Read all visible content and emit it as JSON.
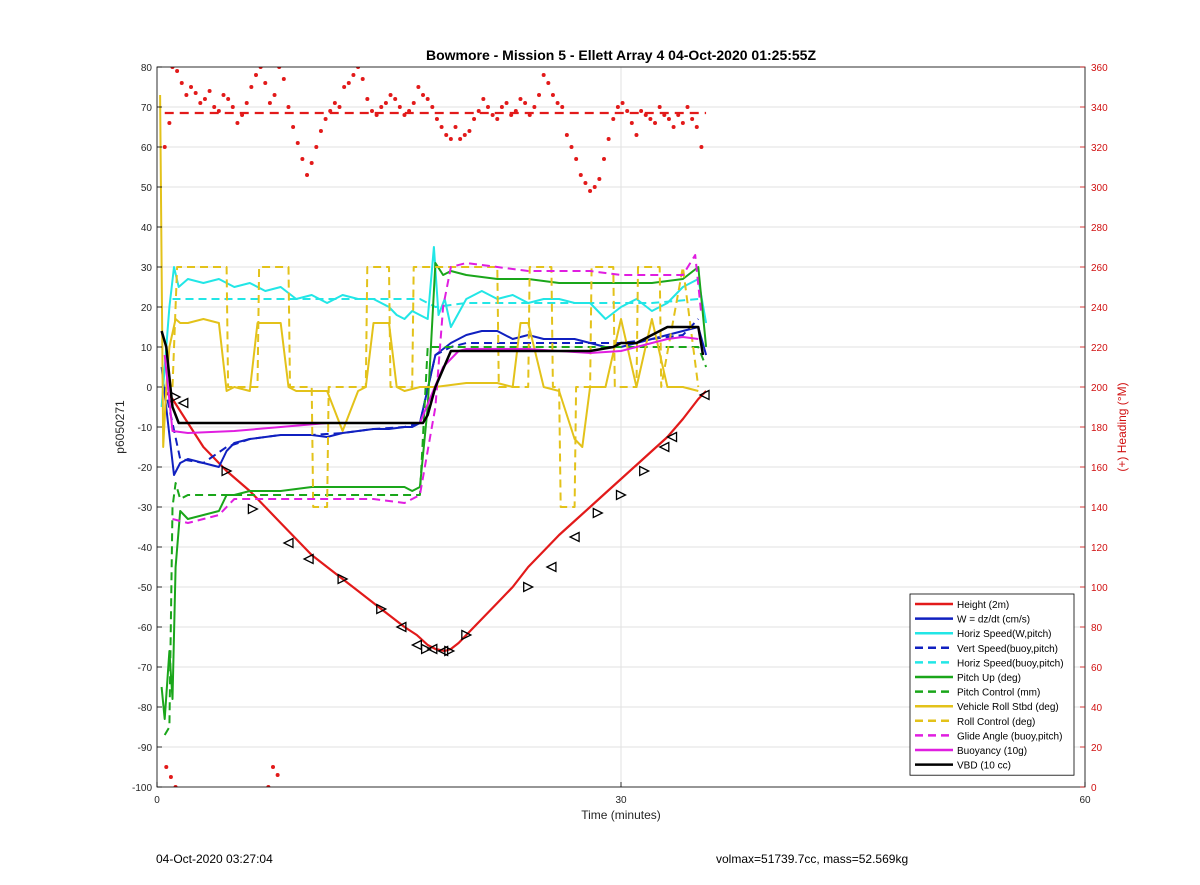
{
  "chart_data": {
    "type": "line",
    "title": "Bowmore - Mission 5 - Ellett Array 4 04-Oct-2020 01:25:55Z",
    "xlabel": "Time (minutes)",
    "ylabel": "p6050271",
    "y2label": "(+) Heading (°M)",
    "xlim": [
      0,
      60
    ],
    "ylim": [
      -100,
      80
    ],
    "y2lim": [
      0,
      360
    ],
    "xticks": [
      0,
      30,
      60
    ],
    "yticks": [
      80,
      70,
      60,
      50,
      40,
      30,
      20,
      10,
      0,
      -10,
      -20,
      -30,
      -40,
      -50,
      -60,
      -70,
      -80,
      -90,
      -100
    ],
    "y2ticks": [
      360,
      340,
      320,
      300,
      280,
      260,
      240,
      220,
      200,
      180,
      160,
      140,
      120,
      100,
      80,
      60,
      40,
      20,
      0
    ],
    "grid": true,
    "legend_position": "lower-right",
    "legend": [
      {
        "label": "Height (2m)",
        "color": "#e21a1a",
        "style": "solid"
      },
      {
        "label": "W = dz/dt (cm/s)",
        "color": "#1020c0",
        "style": "solid"
      },
      {
        "label": "Horiz Speed(W,pitch)",
        "color": "#22e6e6",
        "style": "solid"
      },
      {
        "label": "Vert Speed(buoy,pitch)",
        "color": "#1020c0",
        "style": "dashed"
      },
      {
        "label": "Horiz Speed(buoy,pitch)",
        "color": "#22e6e6",
        "style": "dashed"
      },
      {
        "label": "Pitch Up (deg)",
        "color": "#1aa61a",
        "style": "solid"
      },
      {
        "label": "Pitch Control (mm)",
        "color": "#1aa61a",
        "style": "dashed"
      },
      {
        "label": "Vehicle Roll Stbd (deg)",
        "color": "#e3c21a",
        "style": "solid"
      },
      {
        "label": "Roll Control (deg)",
        "color": "#e3c21a",
        "style": "dashed"
      },
      {
        "label": "Glide Angle (buoy,pitch)",
        "color": "#e01ee0",
        "style": "dashed"
      },
      {
        "label": "Buoyancy (10g)",
        "color": "#e01ee0",
        "style": "solid"
      },
      {
        "label": "VBD (10 cc)",
        "color": "#000000",
        "style": "solid"
      }
    ],
    "series": [
      {
        "name": "Height (2m)",
        "color": "#e21a1a",
        "style": "solid",
        "width": 2.2,
        "x": [
          0.5,
          1.0,
          2.0,
          3.0,
          4.5,
          6.0,
          7.0,
          8.0,
          9.0,
          10.0,
          11.0,
          12.0,
          13.0,
          14.0,
          15.0,
          16.0,
          16.8,
          17.5,
          18.0,
          18.6,
          19.0,
          19.5,
          20.0,
          21.0,
          22.0,
          23.0,
          24.0,
          25.0,
          26.0,
          27.0,
          28.0,
          29.0,
          30.0,
          31.0,
          32.0,
          33.0,
          34.0,
          35.0,
          35.5
        ],
        "y": [
          -1,
          -3,
          -9,
          -15,
          -21,
          -26,
          -30,
          -34,
          -38,
          -42,
          -45,
          -48,
          -51,
          -54,
          -57,
          -60,
          -62,
          -64.5,
          -65.5,
          -66,
          -65.5,
          -64,
          -62,
          -58,
          -54,
          -50,
          -45,
          -41,
          -37,
          -33.5,
          -30,
          -26.5,
          -23,
          -19.5,
          -16,
          -12.5,
          -8,
          -3,
          -1
        ]
      },
      {
        "name": "W = dz/dt (cm/s)",
        "color": "#1020c0",
        "style": "solid",
        "width": 2,
        "x": [
          0.3,
          0.8,
          1.1,
          1.5,
          2.0,
          3.0,
          4.0,
          4.5,
          5.0,
          6.0,
          7.0,
          8.0,
          9.0,
          10.0,
          11.0,
          12.0,
          13.0,
          14.0,
          15.0,
          16.0,
          16.5,
          17.0,
          18.0,
          19.0,
          20.0,
          21.0,
          22.0,
          23.0,
          24.0,
          25.0,
          26.0,
          27.0,
          28.0,
          29.0,
          30.0,
          31.0,
          32.0,
          33.0,
          34.0,
          35.0,
          35.5
        ],
        "y": [
          5,
          -12,
          -22,
          -19,
          -18,
          -19,
          -20,
          -16,
          -14,
          -13,
          -12.5,
          -12,
          -12,
          -12,
          -12.5,
          -11.5,
          -11,
          -10.5,
          -10.5,
          -10,
          -10,
          -9,
          8,
          11,
          13,
          14,
          14,
          12,
          13,
          12,
          12,
          12,
          11,
          10,
          10,
          11,
          12,
          13,
          14,
          15,
          8
        ]
      },
      {
        "name": "Horiz Speed(W,pitch)",
        "color": "#22e6e6",
        "style": "solid",
        "width": 2,
        "x": [
          0.3,
          0.8,
          1.1,
          1.4,
          2.0,
          3.0,
          4.0,
          5.0,
          6.0,
          7.0,
          8.0,
          9.0,
          10.0,
          11.0,
          12.0,
          13.0,
          14.0,
          15.0,
          15.5,
          16.0,
          16.5,
          17.0,
          17.5,
          17.9,
          18.2,
          18.6,
          19.0,
          20.0,
          21.0,
          22.0,
          23.0,
          24.0,
          25.0,
          26.0,
          27.0,
          28.0,
          29.0,
          30.0,
          31.0,
          32.0,
          33.0,
          34.0,
          35.0,
          35.5
        ],
        "y": [
          -5,
          20,
          30,
          25,
          27,
          26,
          27,
          25,
          26,
          24,
          25,
          22,
          23,
          21,
          23,
          22,
          22,
          20,
          18,
          17,
          19,
          18,
          17,
          35,
          18,
          22,
          15,
          22,
          24,
          22,
          23,
          21,
          22,
          22,
          21,
          21,
          17,
          20,
          22,
          19,
          21,
          25,
          27,
          16
        ]
      },
      {
        "name": "Vert Speed(buoy,pitch)",
        "color": "#1020c0",
        "style": "dashed",
        "width": 2,
        "x": [
          0.5,
          1.5,
          3.0,
          4.5,
          6.0,
          8.0,
          10.0,
          12.0,
          14.0,
          16.0,
          17.0,
          18.0,
          19.0,
          20.0,
          22.0,
          24.0,
          26.0,
          28.0,
          30.0,
          32.0,
          34.0,
          35.0
        ],
        "y": [
          0,
          -18,
          -19,
          -15,
          -13,
          -12,
          -12,
          -11.5,
          -10.5,
          -10,
          -9,
          8,
          10,
          11,
          11,
          11,
          11,
          11,
          11,
          12,
          13,
          17
        ]
      },
      {
        "name": "Horiz Speed(buoy,pitch)",
        "color": "#22e6e6",
        "style": "dashed",
        "width": 2,
        "x": [
          1.0,
          2.5,
          5.0,
          8.0,
          11.0,
          14.0,
          17.0,
          18.0,
          20.0,
          24.0,
          28.0,
          32.0,
          35.0
        ],
        "y": [
          22,
          22,
          22,
          22,
          22,
          22,
          22,
          20,
          21,
          21,
          21,
          21,
          22
        ]
      },
      {
        "name": "Pitch Up (deg)",
        "color": "#1aa61a",
        "style": "solid",
        "width": 2,
        "x": [
          0.3,
          0.5,
          0.8,
          1.0,
          1.2,
          1.5,
          2.0,
          3.0,
          4.0,
          4.5,
          5.0,
          6.0,
          8.0,
          10.0,
          12.0,
          14.0,
          16.0,
          16.5,
          17.0,
          17.5,
          18.0,
          18.5,
          19.0,
          20.0,
          22.0,
          24.0,
          26.0,
          28.0,
          30.0,
          32.0,
          34.0,
          35.0,
          35.5
        ],
        "y": [
          -75,
          -83,
          -66,
          -78,
          -45,
          -31,
          -33,
          -32,
          -31,
          -27,
          -27,
          -26,
          -26,
          -25,
          -25,
          -25,
          -25,
          -26,
          -25,
          -5,
          31,
          28,
          29,
          28,
          27,
          27,
          26,
          26,
          26,
          26,
          27,
          30,
          10
        ]
      },
      {
        "name": "Pitch Control (mm)",
        "color": "#1aa61a",
        "style": "dashed",
        "width": 2,
        "x": [
          0.5,
          0.8,
          1.0,
          1.2,
          1.5,
          2.0,
          3.0,
          5.0,
          8.0,
          11.0,
          14.0,
          17.0,
          17.5,
          18.0,
          20.0,
          24.0,
          28.0,
          32.0,
          35.0,
          35.5
        ],
        "y": [
          -87,
          -85,
          -30,
          -24,
          -28,
          -27,
          -27,
          -27,
          -27,
          -27,
          -27,
          -27,
          10,
          10,
          10,
          10,
          10,
          10,
          10,
          5
        ]
      },
      {
        "name": "Vehicle Roll Stbd (deg)",
        "color": "#e3c21a",
        "style": "solid",
        "width": 2,
        "x": [
          0.2,
          0.4,
          0.6,
          0.8,
          1.2,
          1.5,
          2.0,
          3.0,
          4.0,
          4.5,
          5.0,
          6.0,
          6.5,
          7.0,
          8.0,
          8.5,
          9.0,
          10.0,
          11.0,
          12.0,
          13.0,
          13.5,
          14.0,
          15.0,
          15.5,
          16.0,
          17.0,
          18.0,
          20.0,
          22.0,
          23.0,
          23.5,
          24.0,
          25.0,
          26.0,
          27.0,
          27.5,
          28.0,
          29.0,
          30.0,
          31.0,
          32.0,
          33.0,
          34.0,
          35.0
        ],
        "y": [
          73,
          -15,
          0,
          10,
          17,
          16,
          16,
          17,
          16,
          -1,
          0,
          -1,
          16,
          16,
          16,
          0,
          -1,
          -1,
          -1,
          -11,
          -1,
          0,
          16,
          16,
          0,
          -1,
          0,
          0,
          1,
          1,
          0,
          16,
          16,
          0,
          -1,
          -13,
          -15,
          0,
          0,
          17,
          0,
          17,
          0,
          0,
          -1
        ]
      },
      {
        "name": "Roll Control (deg)",
        "color": "#e3c21a",
        "style": "dashed",
        "width": 2,
        "x": [
          1.0,
          1.3,
          2.0,
          4.5,
          4.6,
          6.5,
          6.6,
          8.5,
          8.6,
          10.0,
          10.1,
          11.0,
          11.1,
          13.5,
          13.6,
          15.0,
          15.1,
          16.5,
          16.6,
          20.0,
          22.0,
          22.1,
          24.0,
          24.1,
          25.5,
          25.6,
          26.0,
          26.1,
          27.0,
          27.1,
          28.0,
          28.1,
          29.5,
          29.6,
          31.0,
          31.1,
          32.5,
          32.6,
          34.0,
          35.0
        ],
        "y": [
          0,
          30,
          30,
          30,
          0,
          0,
          30,
          30,
          0,
          0,
          -30,
          -30,
          0,
          0,
          30,
          30,
          0,
          0,
          30,
          30,
          30,
          0,
          0,
          30,
          30,
          0,
          0,
          -30,
          -30,
          0,
          0,
          30,
          30,
          0,
          0,
          30,
          30,
          0,
          30,
          0
        ]
      },
      {
        "name": "Glide Angle (buoy,pitch)",
        "color": "#e01ee0",
        "style": "dashed",
        "width": 2,
        "x": [
          1.0,
          2.0,
          3.0,
          4.0,
          5.0,
          6.0,
          8.0,
          10.0,
          12.0,
          14.0,
          16.0,
          17.0,
          18.0,
          18.5,
          19.0,
          20.0,
          22.0,
          24.0,
          26.0,
          28.0,
          30.0,
          32.0,
          34.0,
          34.8,
          35.2
        ],
        "y": [
          -33,
          -34,
          -33,
          -32,
          -28,
          -28,
          -28,
          -28,
          -28,
          -28,
          -29,
          -27,
          -5,
          20,
          30,
          31,
          30,
          29,
          29,
          29,
          28,
          28,
          28,
          33,
          18
        ]
      },
      {
        "name": "Buoyancy (10g)",
        "color": "#e01ee0",
        "style": "solid",
        "width": 2,
        "x": [
          0.5,
          1.0,
          2.0,
          5.0,
          8.0,
          11.0,
          14.0,
          17.0,
          18.5,
          19.5,
          20.0,
          24.0,
          28.0,
          30.0,
          31.0,
          32.0,
          33.0,
          34.0,
          35.0
        ],
        "y": [
          8,
          -11,
          -11.5,
          -11,
          -10,
          -9,
          -9,
          -9,
          5,
          9,
          9.5,
          9.5,
          8.5,
          9,
          10,
          11,
          12,
          12.5,
          12
        ]
      },
      {
        "name": "VBD (10 cc)",
        "color": "#000000",
        "style": "solid",
        "width": 2.5,
        "x": [
          0.3,
          0.6,
          1.0,
          1.4,
          2.0,
          5.0,
          8.0,
          11.0,
          14.0,
          16.0,
          17.2,
          17.5,
          18.0,
          19.0,
          20.0,
          24.0,
          28.0,
          29.5,
          30.0,
          31.0,
          32.0,
          33.0,
          34.0,
          35.0,
          35.3
        ],
        "y": [
          14,
          10,
          -5,
          -9,
          -9,
          -9,
          -9,
          -9,
          -9,
          -9,
          -9,
          -7,
          0,
          9,
          9,
          9,
          9,
          10,
          11,
          11,
          13,
          15,
          15,
          15,
          8
        ]
      }
    ],
    "heading_points": {
      "color": "#e21a1a",
      "x": [
        0.5,
        0.8,
        1.0,
        1.3,
        1.6,
        1.9,
        2.2,
        2.5,
        2.8,
        3.1,
        3.4,
        3.7,
        4.0,
        4.3,
        4.6,
        4.9,
        5.2,
        5.5,
        5.8,
        6.1,
        6.4,
        6.7,
        7.0,
        7.3,
        7.6,
        7.9,
        8.2,
        8.5,
        8.8,
        9.1,
        9.4,
        9.7,
        10.0,
        10.3,
        10.6,
        10.9,
        11.2,
        11.5,
        11.8,
        12.1,
        12.4,
        12.7,
        13.0,
        13.3,
        13.6,
        13.9,
        14.2,
        14.5,
        14.8,
        15.1,
        15.4,
        15.7,
        16.0,
        16.3,
        16.6,
        16.9,
        17.2,
        17.5,
        17.8,
        18.1,
        18.4,
        18.7,
        19.0,
        19.3,
        19.6,
        19.9,
        20.2,
        20.5,
        20.8,
        21.1,
        21.4,
        21.7,
        22.0,
        22.3,
        22.6,
        22.9,
        23.2,
        23.5,
        23.8,
        24.1,
        24.4,
        24.7,
        25.0,
        25.3,
        25.6,
        25.9,
        26.2,
        26.5,
        26.8,
        27.1,
        27.4,
        27.7,
        28.0,
        28.3,
        28.6,
        28.9,
        29.2,
        29.5,
        29.8,
        30.1,
        30.4,
        30.7,
        31.0,
        31.3,
        31.6,
        31.9,
        32.2,
        32.5,
        32.8,
        33.1,
        33.4,
        33.7,
        34.0,
        34.3,
        34.6,
        34.9,
        35.2,
        0.6,
        0.9,
        1.2,
        7.2,
        7.5,
        7.8
      ],
      "y": [
        320,
        332,
        360,
        358,
        352,
        346,
        350,
        347,
        342,
        344,
        348,
        340,
        338,
        346,
        344,
        340,
        332,
        336,
        342,
        350,
        356,
        360,
        352,
        342,
        346,
        360,
        354,
        340,
        330,
        322,
        314,
        306,
        312,
        320,
        328,
        334,
        338,
        342,
        340,
        350,
        352,
        356,
        360,
        354,
        344,
        338,
        336,
        340,
        342,
        346,
        344,
        340,
        336,
        338,
        342,
        350,
        346,
        344,
        340,
        334,
        330,
        326,
        324,
        330,
        324,
        326,
        328,
        334,
        338,
        344,
        340,
        336,
        334,
        340,
        342,
        336,
        338,
        344,
        342,
        336,
        340,
        346,
        356,
        352,
        346,
        342,
        340,
        326,
        320,
        314,
        306,
        302,
        298,
        300,
        304,
        314,
        324,
        334,
        340,
        342,
        338,
        332,
        326,
        338,
        336,
        334,
        332,
        340,
        336,
        334,
        330,
        336,
        332,
        340,
        334,
        330,
        320,
        10,
        5,
        0,
        0,
        10,
        6
      ],
      "mean": 337
    },
    "triangle_markers": {
      "x": [
        1.2,
        1.7,
        4.5,
        6.2,
        8.5,
        9.8,
        12.0,
        14.5,
        15.8,
        16.8,
        17.4,
        17.8,
        18.5,
        18.9,
        20.0,
        24.0,
        25.5,
        27.0,
        28.5,
        30.0,
        31.5,
        32.8,
        33.3,
        35.4
      ],
      "y": [
        -2.5,
        -4,
        -21,
        -30.5,
        -39,
        -43,
        -48,
        -55.5,
        -60,
        -64.5,
        -65.5,
        -65.5,
        -66,
        -66,
        -62,
        -50,
        -45,
        -37.5,
        -31.5,
        -27,
        -21,
        -15,
        -12.5,
        -2
      ],
      "dir": [
        "r",
        "l",
        "r",
        "r",
        "l",
        "l",
        "r",
        "r",
        "l",
        "l",
        "r",
        "l",
        "l",
        "r",
        "r",
        "r",
        "l",
        "l",
        "r",
        "r",
        "r",
        "l",
        "l",
        "l"
      ]
    }
  },
  "footer": {
    "left": "04-Oct-2020 03:27:04",
    "right": "volmax=51739.7cc, mass=52.569kg"
  }
}
